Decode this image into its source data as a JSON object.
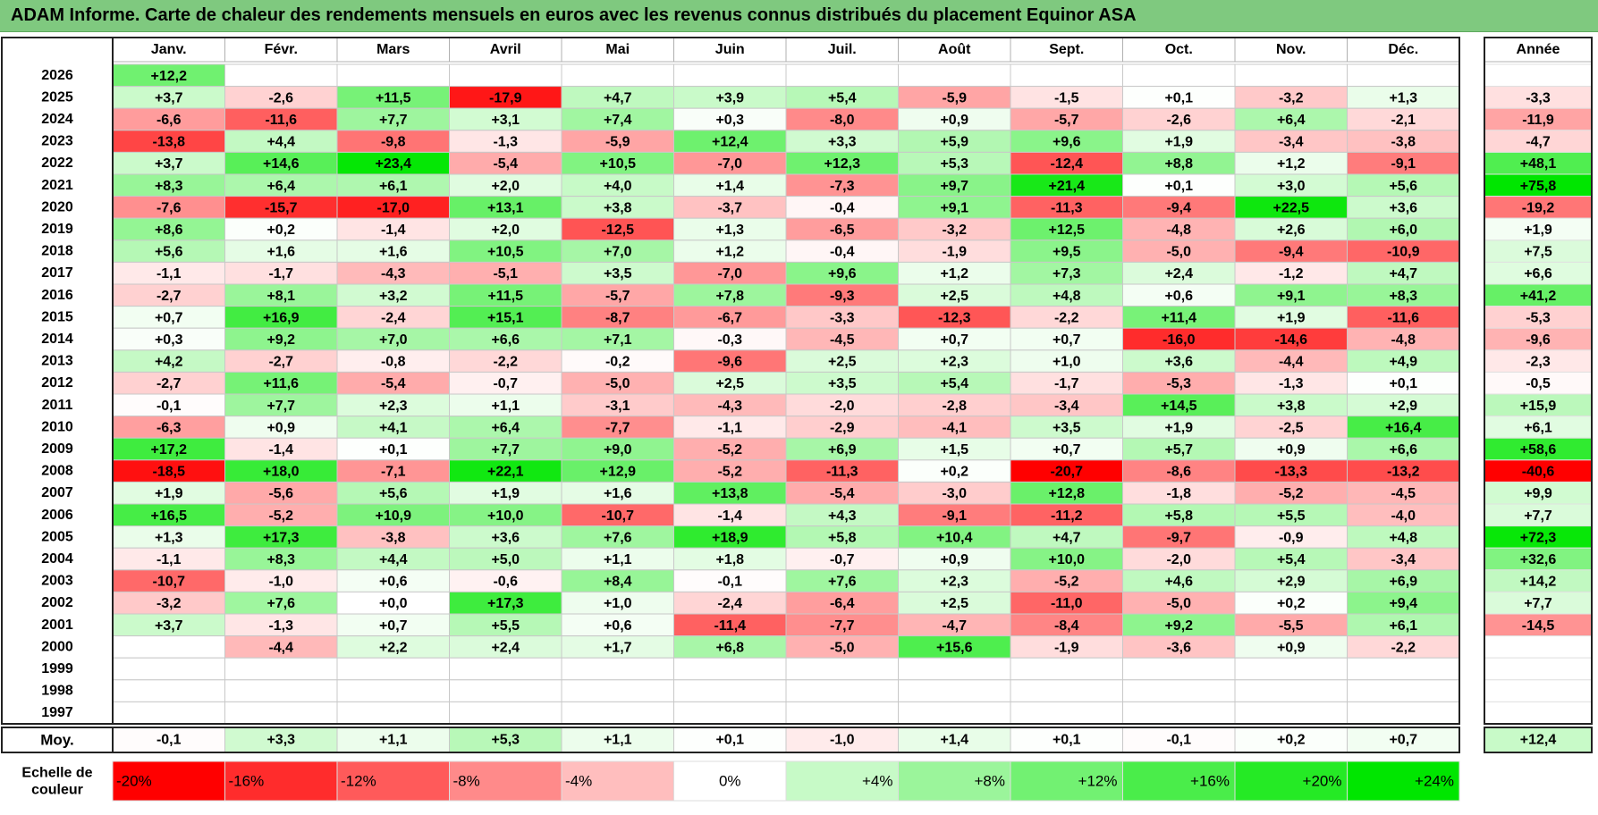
{
  "title": "ADAM Informe. Carte de chaleur des rendements mensuels en euros avec les revenus connus distribués du placement Equinor ASA",
  "chart_data": {
    "type": "heatmap",
    "columns": [
      "Janv.",
      "Févr.",
      "Mars",
      "Avril",
      "Mai",
      "Juin",
      "Juil.",
      "Août",
      "Sept.",
      "Oct.",
      "Nov.",
      "Déc."
    ],
    "year_column_label": "Année",
    "average_label": "Moy.",
    "scale_label": "Echelle de couleur",
    "colors": {
      "neg_max": "#ff0000",
      "zero": "#ffffff",
      "pos_max": "#00e600",
      "title_bar": "#7fc97f"
    },
    "rows": [
      {
        "year": "2026",
        "months": [
          "+12,2",
          "",
          "",
          "",
          "",
          "",
          "",
          "",
          "",
          "",
          "",
          ""
        ],
        "year_total": ""
      },
      {
        "year": "2025",
        "months": [
          "+3,7",
          "-2,6",
          "+11,5",
          "-17,9",
          "+4,7",
          "+3,9",
          "+5,4",
          "-5,9",
          "-1,5",
          "+0,1",
          "-3,2",
          "+1,3"
        ],
        "year_total": "-3,3"
      },
      {
        "year": "2024",
        "months": [
          "-6,6",
          "-11,6",
          "+7,7",
          "+3,1",
          "+7,4",
          "+0,3",
          "-8,0",
          "+0,9",
          "-5,7",
          "-2,6",
          "+6,4",
          "-2,1"
        ],
        "year_total": "-11,9"
      },
      {
        "year": "2023",
        "months": [
          "-13,8",
          "+4,4",
          "-9,8",
          "-1,3",
          "-5,9",
          "+12,4",
          "+3,3",
          "+5,9",
          "+9,6",
          "+1,9",
          "-3,4",
          "-3,8"
        ],
        "year_total": "-4,7"
      },
      {
        "year": "2022",
        "months": [
          "+3,7",
          "+14,6",
          "+23,4",
          "-5,4",
          "+10,5",
          "-7,0",
          "+12,3",
          "+5,3",
          "-12,4",
          "+8,8",
          "+1,2",
          "-9,1"
        ],
        "year_total": "+48,1"
      },
      {
        "year": "2021",
        "months": [
          "+8,3",
          "+6,4",
          "+6,1",
          "+2,0",
          "+4,0",
          "+1,4",
          "-7,3",
          "+9,7",
          "+21,4",
          "+0,1",
          "+3,0",
          "+5,6"
        ],
        "year_total": "+75,8"
      },
      {
        "year": "2020",
        "months": [
          "-7,6",
          "-15,7",
          "-17,0",
          "+13,1",
          "+3,8",
          "-3,7",
          "-0,4",
          "+9,1",
          "-11,3",
          "-9,4",
          "+22,5",
          "+3,6"
        ],
        "year_total": "-19,2"
      },
      {
        "year": "2019",
        "months": [
          "+8,6",
          "+0,2",
          "-1,4",
          "+2,0",
          "-12,5",
          "+1,3",
          "-6,5",
          "-3,2",
          "+12,5",
          "-4,8",
          "+2,6",
          "+6,0"
        ],
        "year_total": "+1,9"
      },
      {
        "year": "2018",
        "months": [
          "+5,6",
          "+1,6",
          "+1,6",
          "+10,5",
          "+7,0",
          "+1,2",
          "-0,4",
          "-1,9",
          "+9,5",
          "-5,0",
          "-9,4",
          "-10,9"
        ],
        "year_total": "+7,5"
      },
      {
        "year": "2017",
        "months": [
          "-1,1",
          "-1,7",
          "-4,3",
          "-5,1",
          "+3,5",
          "-7,0",
          "+9,6",
          "+1,2",
          "+7,3",
          "+2,4",
          "-1,2",
          "+4,7"
        ],
        "year_total": "+6,6"
      },
      {
        "year": "2016",
        "months": [
          "-2,7",
          "+8,1",
          "+3,2",
          "+11,5",
          "-5,7",
          "+7,8",
          "-9,3",
          "+2,5",
          "+4,8",
          "+0,6",
          "+9,1",
          "+8,3"
        ],
        "year_total": "+41,2"
      },
      {
        "year": "2015",
        "months": [
          "+0,7",
          "+16,9",
          "-2,4",
          "+15,1",
          "-8,7",
          "-6,7",
          "-3,3",
          "-12,3",
          "-2,2",
          "+11,4",
          "+1,9",
          "-11,6"
        ],
        "year_total": "-5,3"
      },
      {
        "year": "2014",
        "months": [
          "+0,3",
          "+9,2",
          "+7,0",
          "+6,6",
          "+7,1",
          "-0,3",
          "-4,5",
          "+0,7",
          "+0,7",
          "-16,0",
          "-14,6",
          "-4,8"
        ],
        "year_total": "-9,6"
      },
      {
        "year": "2013",
        "months": [
          "+4,2",
          "-2,7",
          "-0,8",
          "-2,2",
          "-0,2",
          "-9,6",
          "+2,5",
          "+2,3",
          "+1,0",
          "+3,6",
          "-4,4",
          "+4,9"
        ],
        "year_total": "-2,3"
      },
      {
        "year": "2012",
        "months": [
          "-2,7",
          "+11,6",
          "-5,4",
          "-0,7",
          "-5,0",
          "+2,5",
          "+3,5",
          "+5,4",
          "-1,7",
          "-5,3",
          "-1,3",
          "+0,1"
        ],
        "year_total": "-0,5"
      },
      {
        "year": "2011",
        "months": [
          "-0,1",
          "+7,7",
          "+2,3",
          "+1,1",
          "-3,1",
          "-4,3",
          "-2,0",
          "-2,8",
          "-3,4",
          "+14,5",
          "+3,8",
          "+2,9"
        ],
        "year_total": "+15,9"
      },
      {
        "year": "2010",
        "months": [
          "-6,3",
          "+0,9",
          "+4,1",
          "+6,4",
          "-7,7",
          "-1,1",
          "-2,9",
          "-4,1",
          "+3,5",
          "+1,9",
          "-2,5",
          "+16,4"
        ],
        "year_total": "+6,1"
      },
      {
        "year": "2009",
        "months": [
          "+17,2",
          "-1,4",
          "+0,1",
          "+7,7",
          "+9,0",
          "-5,2",
          "+6,9",
          "+1,5",
          "+0,7",
          "+5,7",
          "+0,9",
          "+6,6"
        ],
        "year_total": "+58,6"
      },
      {
        "year": "2008",
        "months": [
          "-18,5",
          "+18,0",
          "-7,1",
          "+22,1",
          "+12,9",
          "-5,2",
          "-11,3",
          "+0,2",
          "-20,7",
          "-8,6",
          "-13,3",
          "-13,2"
        ],
        "year_total": "-40,6"
      },
      {
        "year": "2007",
        "months": [
          "+1,9",
          "-5,6",
          "+5,6",
          "+1,9",
          "+1,6",
          "+13,8",
          "-5,4",
          "-3,0",
          "+12,8",
          "-1,8",
          "-5,2",
          "-4,5"
        ],
        "year_total": "+9,9"
      },
      {
        "year": "2006",
        "months": [
          "+16,5",
          "-5,2",
          "+10,9",
          "+10,0",
          "-10,7",
          "-1,4",
          "+4,3",
          "-9,1",
          "-11,2",
          "+5,8",
          "+5,5",
          "-4,0"
        ],
        "year_total": "+7,7"
      },
      {
        "year": "2005",
        "months": [
          "+1,3",
          "+17,3",
          "-3,8",
          "+3,6",
          "+7,6",
          "+18,9",
          "+5,8",
          "+10,4",
          "+4,7",
          "-9,7",
          "-0,9",
          "+4,8"
        ],
        "year_total": "+72,3"
      },
      {
        "year": "2004",
        "months": [
          "-1,1",
          "+8,3",
          "+4,4",
          "+5,0",
          "+1,1",
          "+1,8",
          "-0,7",
          "+0,9",
          "+10,0",
          "-2,0",
          "+5,4",
          "-3,4"
        ],
        "year_total": "+32,6"
      },
      {
        "year": "2003",
        "months": [
          "-10,7",
          "-1,0",
          "+0,6",
          "-0,6",
          "+8,4",
          "-0,1",
          "+7,6",
          "+2,3",
          "-5,2",
          "+4,6",
          "+2,9",
          "+6,9"
        ],
        "year_total": "+14,2"
      },
      {
        "year": "2002",
        "months": [
          "-3,2",
          "+7,6",
          "+0,0",
          "+17,3",
          "+1,0",
          "-2,4",
          "-6,4",
          "+2,5",
          "-11,0",
          "-5,0",
          "+0,2",
          "+9,4"
        ],
        "year_total": "+7,7"
      },
      {
        "year": "2001",
        "months": [
          "+3,7",
          "-1,3",
          "+0,7",
          "+5,5",
          "+0,6",
          "-11,4",
          "-7,7",
          "-4,7",
          "-8,4",
          "+9,2",
          "-5,5",
          "+6,1"
        ],
        "year_total": "-14,5"
      },
      {
        "year": "2000",
        "months": [
          "",
          "-4,4",
          "+2,2",
          "+2,4",
          "+1,7",
          "+6,8",
          "-5,0",
          "+15,6",
          "-1,9",
          "-3,6",
          "+0,9",
          "-2,2"
        ],
        "year_total": ""
      },
      {
        "year": "1999",
        "months": [
          "",
          "",
          "",
          "",
          "",
          "",
          "",
          "",
          "",
          "",
          "",
          ""
        ],
        "year_total": ""
      },
      {
        "year": "1998",
        "months": [
          "",
          "",
          "",
          "",
          "",
          "",
          "",
          "",
          "",
          "",
          "",
          ""
        ],
        "year_total": ""
      },
      {
        "year": "1997",
        "months": [
          "",
          "",
          "",
          "",
          "",
          "",
          "",
          "",
          "",
          "",
          "",
          ""
        ],
        "year_total": ""
      }
    ],
    "average": {
      "months": [
        "-0,1",
        "+3,3",
        "+1,1",
        "+5,3",
        "+1,1",
        "+0,1",
        "-1,0",
        "+1,4",
        "+0,1",
        "-0,1",
        "+0,2",
        "+0,7"
      ],
      "year_total": "+12,4"
    },
    "scale": [
      "-20%",
      "-16%",
      "-12%",
      "-8%",
      "-4%",
      "0%",
      "+4%",
      "+8%",
      "+12%",
      "+16%",
      "+20%",
      "+24%"
    ]
  }
}
